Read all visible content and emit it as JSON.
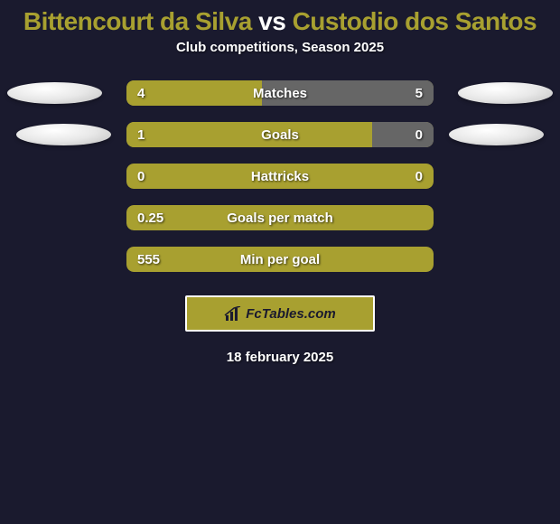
{
  "background_color": "#1a1a2e",
  "title": {
    "player1": "Bittencourt da Silva",
    "vs_text": "vs",
    "player2": "Custodio dos Santos",
    "player_color": "#a8a030",
    "vs_color": "#ffffff",
    "fontsize": 28
  },
  "subtitle": "Club competitions, Season 2025",
  "bar_total_width": 340,
  "stats": [
    {
      "label": "Matches",
      "left_val": "4",
      "right_val": "5",
      "left_pct": 44,
      "right_pct": 56,
      "left_color": "#a8a030",
      "right_color": "#666666",
      "bg_color": "#a8a030",
      "show_oval_left": true,
      "show_oval_right": true,
      "oval_left_offset": 8,
      "oval_right_offset": 8
    },
    {
      "label": "Goals",
      "left_val": "1",
      "right_val": "0",
      "left_pct": 80,
      "right_pct": 20,
      "left_color": "#a8a030",
      "right_color": "#666666",
      "bg_color": "#a8a030",
      "show_oval_left": true,
      "show_oval_right": true,
      "oval_left_offset": 18,
      "oval_right_offset": 18
    },
    {
      "label": "Hattricks",
      "left_val": "0",
      "right_val": "0",
      "left_pct": 0,
      "right_pct": 0,
      "left_color": "#a8a030",
      "right_color": "#666666",
      "bg_color": "#a8a030",
      "show_oval_left": false,
      "show_oval_right": false
    },
    {
      "label": "Goals per match",
      "left_val": "0.25",
      "right_val": "",
      "left_pct": 100,
      "right_pct": 0,
      "left_color": "#a8a030",
      "right_color": "#666666",
      "bg_color": "#a8a030",
      "show_oval_left": false,
      "show_oval_right": false
    },
    {
      "label": "Min per goal",
      "left_val": "555",
      "right_val": "",
      "left_pct": 100,
      "right_pct": 0,
      "left_color": "#a8a030",
      "right_color": "#666666",
      "bg_color": "#a8a030",
      "show_oval_left": false,
      "show_oval_right": false
    }
  ],
  "logo": {
    "text": "FcTables.com",
    "text_color": "#1a1a2e",
    "bg_color": "#a8a030",
    "border_color": "#ffffff"
  },
  "date_text": "18 february 2025"
}
